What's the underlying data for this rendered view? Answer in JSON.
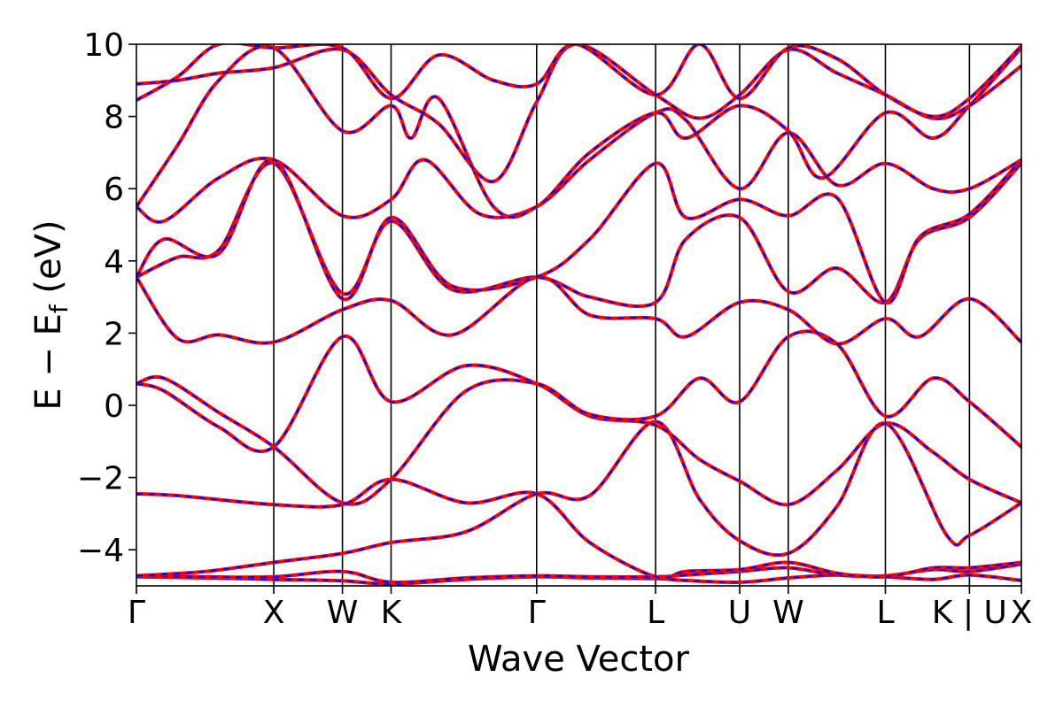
{
  "chart_data": {
    "type": "line",
    "title": "",
    "xlabel": "Wave Vector",
    "ylabel": "E − Ef (eV)",
    "ylabel_parts": {
      "main": "E − E",
      "sub": "f",
      "unit": " (eV)"
    },
    "ylim": [
      -5,
      10
    ],
    "yticks": [
      -4,
      -2,
      0,
      2,
      4,
      6,
      8,
      10
    ],
    "ytick_labels": [
      "−4",
      "−2",
      "0",
      "2",
      "4",
      "6",
      "8",
      "10"
    ],
    "xlim": [
      0,
      6.443
    ],
    "kpoints": [
      {
        "label": "Γ",
        "x": 0.0
      },
      {
        "label": "X",
        "x": 1.0
      },
      {
        "label": "W",
        "x": 1.5
      },
      {
        "label": "K",
        "x": 1.854
      },
      {
        "label": "Γ",
        "x": 2.914
      },
      {
        "label": "L",
        "x": 3.78
      },
      {
        "label": "U",
        "x": 4.392
      },
      {
        "label": "W",
        "x": 4.746
      },
      {
        "label": "L",
        "x": 5.453
      },
      {
        "label": "K | U",
        "x": 6.065
      },
      {
        "label": "X",
        "x": 6.443
      }
    ],
    "band_colors": {
      "solid": "#ff0000",
      "dashed": "#0000ff"
    },
    "series": [
      {
        "name": "band-1",
        "x": [
          0,
          0.5,
          1.0,
          1.5,
          1.854,
          2.4,
          2.914,
          3.3,
          3.78,
          4.0,
          4.392,
          4.746,
          5.1,
          5.453,
          5.8,
          6.065,
          6.443
        ],
        "values": [
          -4.75,
          -4.78,
          -4.82,
          -4.86,
          -4.95,
          -4.82,
          -4.75,
          -4.78,
          -4.8,
          -4.85,
          -4.9,
          -4.78,
          -4.7,
          -4.75,
          -4.82,
          -4.7,
          -4.85
        ]
      },
      {
        "name": "band-2",
        "x": [
          0,
          0.5,
          1.0,
          1.5,
          1.854,
          2.4,
          2.914,
          3.3,
          3.78,
          4.0,
          4.392,
          4.746,
          5.1,
          5.453,
          5.8,
          6.065,
          6.443
        ],
        "values": [
          -4.72,
          -4.75,
          -4.75,
          -4.6,
          -4.9,
          -4.78,
          -4.72,
          -4.75,
          -4.75,
          -4.7,
          -4.6,
          -4.5,
          -4.7,
          -4.72,
          -4.55,
          -4.6,
          -4.4
        ]
      },
      {
        "name": "band-3",
        "x": [
          0,
          0.3,
          1.0,
          1.5,
          1.854,
          2.4,
          2.914,
          3.3,
          3.78,
          4.0,
          4.392,
          4.746,
          5.1,
          5.453,
          5.8,
          6.065,
          6.443
        ],
        "values": [
          -2.45,
          -2.5,
          -2.75,
          -2.75,
          -2.05,
          -2.7,
          -2.45,
          -3.8,
          -4.75,
          -4.6,
          -4.55,
          -4.35,
          -4.65,
          -4.75,
          -4.5,
          -4.5,
          -4.35
        ]
      },
      {
        "name": "band-4",
        "x": [
          0,
          0.5,
          1.0,
          1.5,
          1.854,
          2.4,
          2.914,
          3.3,
          3.78,
          4.1,
          4.392,
          4.746,
          5.1,
          5.453,
          5.9,
          6.065,
          6.443
        ],
        "values": [
          -4.72,
          -4.6,
          -4.35,
          -4.1,
          -3.8,
          -3.5,
          -2.45,
          -2.5,
          -0.45,
          -2.6,
          -3.75,
          -4.1,
          -2.8,
          -0.5,
          -3.6,
          -3.6,
          -2.7
        ]
      },
      {
        "name": "band-5",
        "x": [
          0,
          0.2,
          0.6,
          1.0,
          1.5,
          1.854,
          2.4,
          2.914,
          3.3,
          3.78,
          4.1,
          4.392,
          4.746,
          5.1,
          5.453,
          5.8,
          6.065,
          6.443
        ],
        "values": [
          0.6,
          0.4,
          -0.6,
          -1.15,
          1.9,
          0.1,
          1.1,
          0.6,
          -0.3,
          -0.55,
          -1.5,
          -2.1,
          -2.75,
          -1.8,
          -0.5,
          -1.3,
          -2.05,
          -2.7
        ]
      },
      {
        "name": "band-6",
        "x": [
          0,
          0.2,
          0.6,
          1.0,
          1.5,
          1.854,
          2.4,
          2.914,
          3.3,
          3.78,
          4.1,
          4.392,
          4.746,
          5.1,
          5.453,
          5.8,
          6.065,
          6.443
        ],
        "values": [
          0.6,
          0.75,
          -0.2,
          -1.15,
          -2.7,
          -2.05,
          0.4,
          0.6,
          -0.25,
          -0.3,
          0.75,
          0.1,
          1.9,
          1.7,
          -0.3,
          0.75,
          0.1,
          -1.15
        ]
      },
      {
        "name": "band-7",
        "x": [
          0,
          0.3,
          0.6,
          1.0,
          1.5,
          1.854,
          2.3,
          2.914,
          3.3,
          3.78,
          4.0,
          4.392,
          4.746,
          5.1,
          5.453,
          5.7,
          6.065,
          6.443
        ],
        "values": [
          3.55,
          1.85,
          1.95,
          1.75,
          2.65,
          2.9,
          1.95,
          3.55,
          2.5,
          2.4,
          1.9,
          2.85,
          2.65,
          1.7,
          2.4,
          1.9,
          2.95,
          1.75
        ]
      },
      {
        "name": "band-8",
        "x": [
          0,
          0.3,
          0.6,
          1.0,
          1.5,
          1.854,
          2.3,
          2.914,
          3.3,
          3.78,
          4.0,
          4.392,
          4.746,
          5.1,
          5.453,
          5.7,
          6.065,
          6.443
        ],
        "values": [
          3.55,
          4.1,
          4.3,
          6.7,
          3.1,
          5.1,
          3.2,
          3.55,
          3.0,
          2.85,
          4.6,
          5.2,
          3.15,
          3.8,
          2.85,
          4.6,
          5.2,
          6.7
        ]
      },
      {
        "name": "band-9",
        "x": [
          0,
          0.2,
          0.6,
          1.0,
          1.5,
          1.854,
          2.3,
          2.914,
          3.3,
          3.78,
          4.0,
          4.392,
          4.746,
          5.1,
          5.453,
          5.7,
          6.065,
          6.443
        ],
        "values": [
          3.55,
          4.6,
          4.2,
          6.8,
          2.95,
          5.2,
          3.3,
          3.55,
          4.6,
          6.7,
          5.2,
          5.7,
          5.25,
          5.75,
          2.85,
          4.65,
          5.3,
          6.8
        ]
      },
      {
        "name": "band-10",
        "x": [
          0,
          0.2,
          0.6,
          1.0,
          1.5,
          1.854,
          2.1,
          2.5,
          2.914,
          3.3,
          3.78,
          4.0,
          4.392,
          4.746,
          5.1,
          5.453,
          5.8,
          6.065,
          6.443
        ],
        "values": [
          5.5,
          5.1,
          6.3,
          6.8,
          5.25,
          5.7,
          6.8,
          5.3,
          5.5,
          6.8,
          8.1,
          7.9,
          6.0,
          7.55,
          6.1,
          6.7,
          6.0,
          6.0,
          6.8
        ]
      },
      {
        "name": "band-11",
        "x": [
          0,
          0.3,
          0.6,
          1.0,
          1.5,
          1.854,
          2.0,
          2.2,
          2.6,
          2.914,
          3.3,
          3.78,
          4.0,
          4.392,
          4.746,
          5.0,
          5.453,
          5.8,
          6.065,
          6.443
        ],
        "values": [
          5.5,
          7.2,
          9.0,
          9.9,
          7.6,
          8.3,
          7.4,
          8.5,
          5.5,
          5.5,
          7.0,
          8.1,
          7.4,
          8.3,
          7.6,
          6.3,
          8.1,
          7.4,
          8.3,
          9.9
        ]
      },
      {
        "name": "band-12",
        "x": [
          0,
          0.3,
          0.6,
          1.0,
          1.5,
          1.854,
          2.2,
          2.6,
          2.914,
          3.2,
          3.78,
          4.1,
          4.392,
          4.746,
          5.1,
          5.453,
          5.8,
          6.065,
          6.443
        ],
        "values": [
          8.9,
          9.0,
          9.2,
          9.35,
          9.85,
          8.6,
          7.8,
          6.2,
          8.4,
          10.0,
          8.6,
          7.95,
          8.6,
          9.85,
          9.2,
          8.6,
          7.95,
          8.3,
          9.4
        ]
      },
      {
        "name": "band-13",
        "x": [
          0,
          0.3,
          0.6,
          1.0,
          1.5,
          1.854,
          2.2,
          2.6,
          2.914,
          3.2,
          3.78,
          4.1,
          4.392,
          4.746,
          5.1,
          5.453,
          5.8,
          6.065,
          6.443
        ],
        "values": [
          8.45,
          9.1,
          10.0,
          9.9,
          9.9,
          8.5,
          9.7,
          9.0,
          8.9,
          10.0,
          8.6,
          10.0,
          8.5,
          9.9,
          9.6,
          8.6,
          8.0,
          8.5,
          9.95
        ]
      }
    ]
  }
}
